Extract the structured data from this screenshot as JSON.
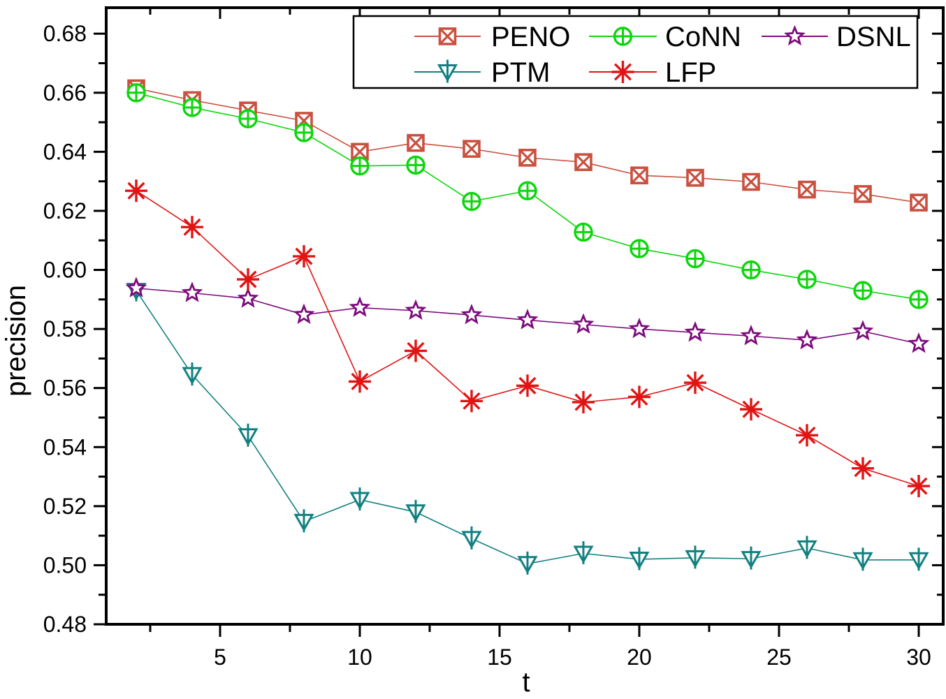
{
  "chart_data": {
    "type": "line",
    "title": "",
    "xlabel": "t",
    "ylabel": "precision",
    "x": [
      2,
      4,
      6,
      8,
      10,
      12,
      14,
      16,
      18,
      20,
      22,
      24,
      26,
      28,
      30
    ],
    "xlim": [
      0.925,
      30.875
    ],
    "ylim": [
      0.48,
      0.6888
    ],
    "x_major_ticks": [
      5,
      10,
      15,
      20,
      25,
      30
    ],
    "x_minor_ticks": [
      2.5,
      7.5,
      12.5,
      17.5,
      22.5,
      27.5
    ],
    "y_major_step": 0.02,
    "y_minor_step": 0.01,
    "grid": false,
    "legend_position": "top-center",
    "legend_rows": [
      [
        "PENO",
        "CoNN",
        "DSNL"
      ],
      [
        "PTM",
        "LFP"
      ]
    ],
    "series": [
      {
        "name": "PENO",
        "color": "#C95140",
        "marker": "square-x",
        "values": [
          0.6615,
          0.6575,
          0.654,
          0.6505,
          0.64,
          0.643,
          0.641,
          0.638,
          0.6365,
          0.632,
          0.6312,
          0.6298,
          0.6272,
          0.6257,
          0.6228
        ]
      },
      {
        "name": "CoNN",
        "color": "#0CD60C",
        "marker": "circle-plus",
        "values": [
          0.66,
          0.655,
          0.6512,
          0.6465,
          0.6352,
          0.6355,
          0.6232,
          0.6268,
          0.6128,
          0.6072,
          0.6038,
          0.6,
          0.5968,
          0.593,
          0.59
        ]
      },
      {
        "name": "PTM",
        "color": "#128080",
        "marker": "triangle-down-line",
        "values": [
          0.593,
          0.5645,
          0.5438,
          0.5148,
          0.5222,
          0.518,
          0.509,
          0.5005,
          0.504,
          0.502,
          0.5025,
          0.5022,
          0.5058,
          0.5018,
          0.5018
        ]
      },
      {
        "name": "DSNL",
        "color": "#7D0C7D",
        "marker": "star",
        "values": [
          0.5938,
          0.5922,
          0.5903,
          0.5848,
          0.5872,
          0.5862,
          0.5847,
          0.583,
          0.5815,
          0.58,
          0.5788,
          0.5776,
          0.5762,
          0.5792,
          0.575
        ]
      },
      {
        "name": "LFP",
        "color": "#E11414",
        "marker": "asterisk",
        "values": [
          0.6268,
          0.6145,
          0.5968,
          0.6046,
          0.5622,
          0.5726,
          0.5556,
          0.5608,
          0.5552,
          0.557,
          0.5618,
          0.5528,
          0.544,
          0.5328,
          0.5268
        ]
      }
    ]
  }
}
